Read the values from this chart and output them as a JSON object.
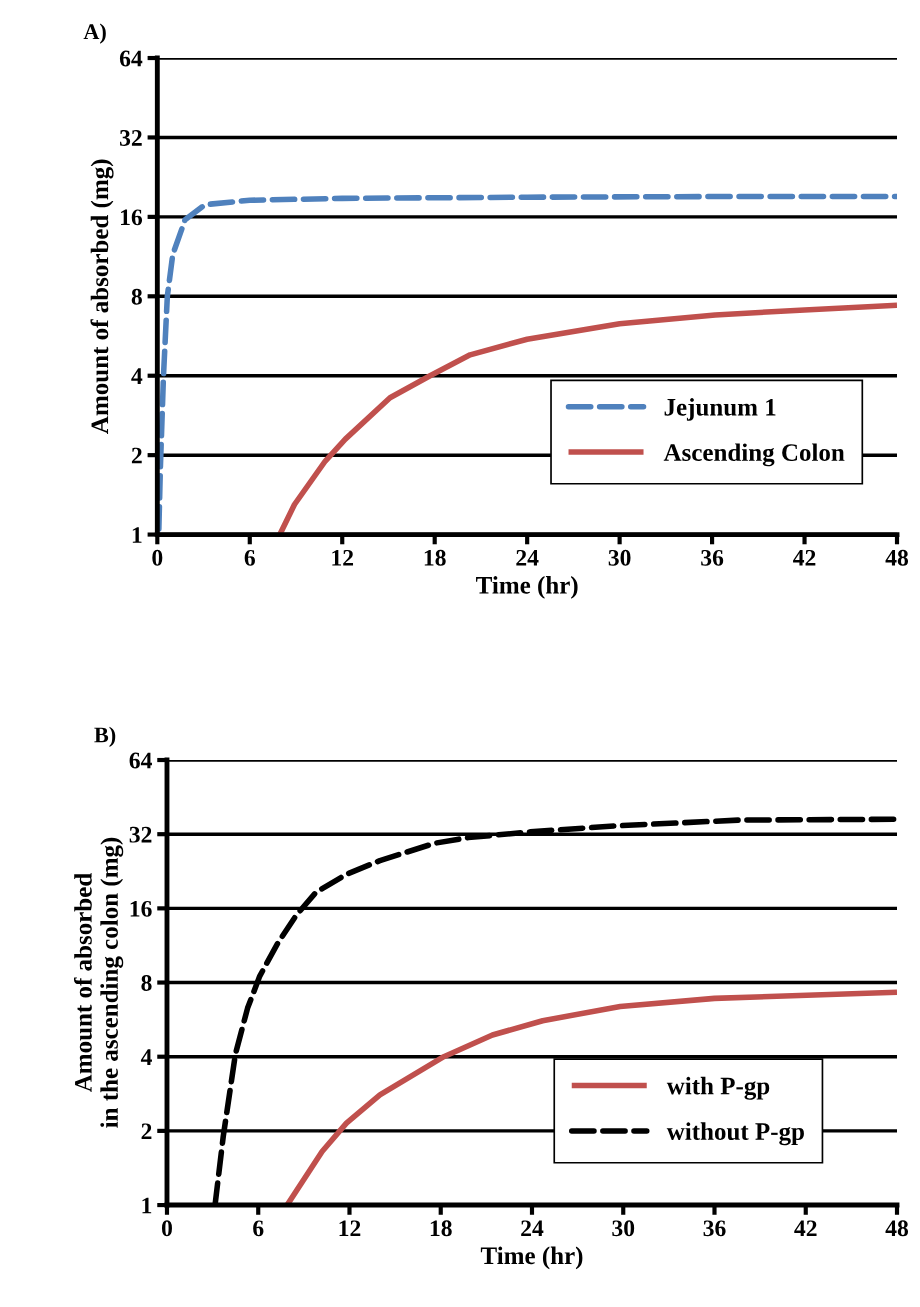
{
  "chart_data": [
    {
      "type": "line",
      "title": "A)",
      "xlabel": "Time (hr)",
      "ylabel": "Amount of absorbed (mg)",
      "log": "y",
      "xlim": [
        0,
        48
      ],
      "xticks": [
        0,
        6,
        12,
        18,
        24,
        30,
        36,
        42,
        48
      ],
      "ylim": [
        1,
        64
      ],
      "yticks": [
        1,
        2,
        4,
        8,
        16,
        32,
        64
      ],
      "grid": "y",
      "legend": "right",
      "series": [
        {
          "name": "Jejunum 1",
          "color": "#4f81bd",
          "line_style": "dashed",
          "x": [
            0.1,
            0.2,
            0.4,
            0.65,
            1.0,
            1.8,
            3.1,
            6,
            12,
            24,
            36,
            48
          ],
          "values": [
            1.05,
            1.8,
            4,
            8,
            11.5,
            15.6,
            17.8,
            18.5,
            18.8,
            19,
            19.1,
            19.1
          ]
        },
        {
          "name": "Ascending Colon",
          "color": "#c0504d",
          "line_style": "solid",
          "x": [
            7.95,
            8.9,
            10.9,
            12.2,
            15.1,
            17.7,
            20.3,
            24,
            30,
            36.2,
            42,
            48
          ],
          "values": [
            1,
            1.3,
            1.9,
            2.3,
            3.3,
            4.0,
            4.8,
            5.5,
            6.3,
            6.8,
            7.1,
            7.4
          ]
        }
      ]
    },
    {
      "type": "line",
      "title": "B)",
      "xlabel": "Time (hr)",
      "ylabel": "Amount of absorbed\nin the ascending colon (mg)",
      "log": "y",
      "xlim": [
        0,
        48
      ],
      "xticks": [
        0,
        6,
        12,
        18,
        24,
        30,
        36,
        42,
        48
      ],
      "ylim": [
        1,
        64
      ],
      "yticks": [
        1,
        2,
        4,
        8,
        16,
        32,
        64
      ],
      "grid": "y",
      "legend": "bottom right",
      "series": [
        {
          "name": "with P-gp",
          "color": "#c0504d",
          "line_style": "solid",
          "x": [
            7.9,
            10.2,
            11.8,
            14.0,
            18.2,
            21.4,
            24.7,
            29.8,
            36,
            48
          ],
          "values": [
            1,
            1.65,
            2.15,
            2.8,
            4,
            4.9,
            5.6,
            6.4,
            6.9,
            7.3
          ]
        },
        {
          "name": "without P-gp",
          "color": "#000000",
          "line_style": "dashed",
          "x": [
            3.16,
            3.7,
            4.5,
            5.3,
            6.1,
            7.3,
            8.5,
            9.8,
            11.8,
            14.0,
            17.6,
            19.8,
            23.9,
            29.5,
            37.6,
            48
          ],
          "values": [
            1,
            1.9,
            4.1,
            6.3,
            8.5,
            11.6,
            15,
            18.6,
            22,
            25,
            29.4,
            31,
            32.7,
            34.6,
            36.5,
            36.8
          ]
        }
      ]
    }
  ]
}
